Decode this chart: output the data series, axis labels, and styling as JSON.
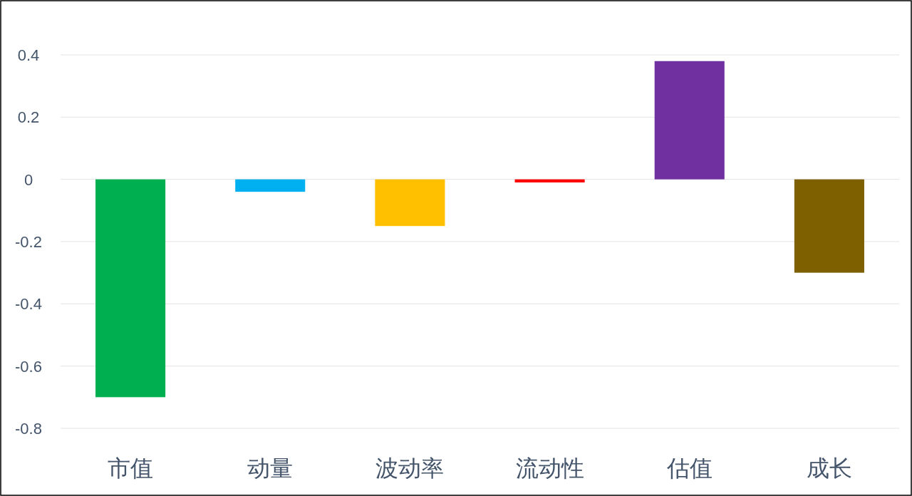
{
  "chart_data": {
    "type": "bar",
    "categories": [
      "市值",
      "动量",
      "波动率",
      "流动性",
      "估值",
      "成长"
    ],
    "values": [
      -0.7,
      -0.04,
      -0.15,
      -0.01,
      0.38,
      -0.3
    ],
    "colors": [
      "#00b050",
      "#00b0f0",
      "#ffc000",
      "#ff0000",
      "#7030a0",
      "#7f6000"
    ],
    "ylim": [
      -0.8,
      0.4
    ],
    "yticks": [
      {
        "value": -0.8,
        "label": "-0.8"
      },
      {
        "value": -0.6,
        "label": "-0.6"
      },
      {
        "value": -0.4,
        "label": "-0.4"
      },
      {
        "value": -0.2,
        "label": "-0.2"
      },
      0,
      0.2,
      0.4
    ],
    "grid": "y"
  }
}
